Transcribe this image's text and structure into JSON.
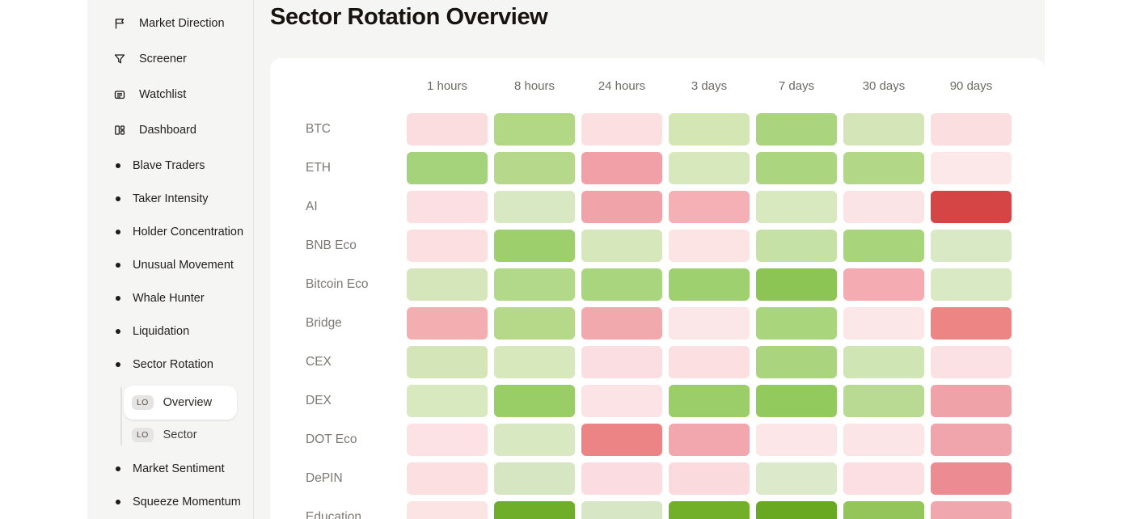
{
  "page": {
    "title": "Sector Rotation Overview"
  },
  "sidebar": {
    "items": [
      {
        "label": "Market Direction",
        "icon": "flag-icon"
      },
      {
        "label": "Screener",
        "icon": "filter-icon"
      },
      {
        "label": "Watchlist",
        "icon": "watchlist-icon"
      },
      {
        "label": "Dashboard",
        "icon": "dashboard-icon"
      },
      {
        "label": "Blave Traders",
        "icon": "bullet-icon"
      },
      {
        "label": "Taker Intensity",
        "icon": "bullet-icon"
      },
      {
        "label": "Holder Concentration",
        "icon": "bullet-icon"
      },
      {
        "label": "Unusual Movement",
        "icon": "bullet-icon"
      },
      {
        "label": "Whale Hunter",
        "icon": "bullet-icon"
      },
      {
        "label": "Liquidation",
        "icon": "bullet-icon"
      },
      {
        "label": "Sector Rotation",
        "icon": "bullet-icon"
      },
      {
        "label": "Market Sentiment",
        "icon": "bullet-icon"
      },
      {
        "label": "Squeeze Momentum",
        "icon": "bullet-icon"
      }
    ],
    "sub_items": [
      {
        "label": "Overview",
        "badge": "LO",
        "selected": true
      },
      {
        "label": "Sector",
        "badge": "LO",
        "selected": false
      }
    ]
  },
  "chart_data": {
    "type": "heatmap",
    "title": "Sector Rotation Overview",
    "columns": [
      "1 hours",
      "8 hours",
      "24 hours",
      "3 days",
      "7 days",
      "30 days",
      "90 days"
    ],
    "rows": [
      {
        "name": "BTC",
        "colors": [
          "#fbdde0",
          "#b2d785",
          "#fbdfe1",
          "#d3e6b4",
          "#aad47e",
          "#d4e6b7",
          "#fbdfe0"
        ]
      },
      {
        "name": "ETH",
        "colors": [
          "#a5d37b",
          "#b6d88b",
          "#f0a0a6",
          "#d7e8bc",
          "#acd580",
          "#b2d786",
          "#fce8e8"
        ]
      },
      {
        "name": "AI",
        "colors": [
          "#fcdfe2",
          "#d7e8c2",
          "#f0a3a9",
          "#f4b0b4",
          "#d8e9c0",
          "#fbe4e6",
          "#d64545"
        ]
      },
      {
        "name": "BNB Eco",
        "colors": [
          "#fcdfe1",
          "#9ecf6d",
          "#d6e8bb",
          "#fce4e4",
          "#c6e1a6",
          "#a8d47c",
          "#d9e8c5"
        ]
      },
      {
        "name": "Bitcoin Eco",
        "colors": [
          "#d5e7ba",
          "#b2d889",
          "#a9d57e",
          "#9fd06f",
          "#8cc554",
          "#f4abb2",
          "#d8e9c4"
        ]
      },
      {
        "name": "Bridge",
        "colors": [
          "#f3aeb2",
          "#b5d989",
          "#f2a9ad",
          "#fce7e8",
          "#a9d57c",
          "#fce7e8",
          "#ed8585"
        ]
      },
      {
        "name": "CEX",
        "colors": [
          "#d4e6b8",
          "#d7e8bd",
          "#fbdee2",
          "#fbdfe1",
          "#aad47e",
          "#cfe5b3",
          "#fbe1e3"
        ]
      },
      {
        "name": "DEX",
        "colors": [
          "#d8e9c0",
          "#99cd66",
          "#fce3e6",
          "#9bce69",
          "#93ca5d",
          "#b9da93",
          "#f0a2a9"
        ]
      },
      {
        "name": "DOT Eco",
        "colors": [
          "#fce2e4",
          "#d8e9c2",
          "#ec8384",
          "#f2a6ad",
          "#fce6e7",
          "#fce5e6",
          "#f0a4ab"
        ]
      },
      {
        "name": "DePIN",
        "colors": [
          "#fbdfe1",
          "#d6e6c2",
          "#fbdce0",
          "#fadadd",
          "#dce9ca",
          "#fbdfe3",
          "#ec8b91"
        ]
      },
      {
        "name": "Education",
        "colors": [
          "#fce4e5",
          "#6fae28",
          "#d7e7c5",
          "#72b02a",
          "#68a921",
          "#93c55b",
          "#f1a7ae"
        ]
      }
    ],
    "value_encoding": "cell color from strong red (negative) through light pink/light green to strong green (positive)"
  }
}
